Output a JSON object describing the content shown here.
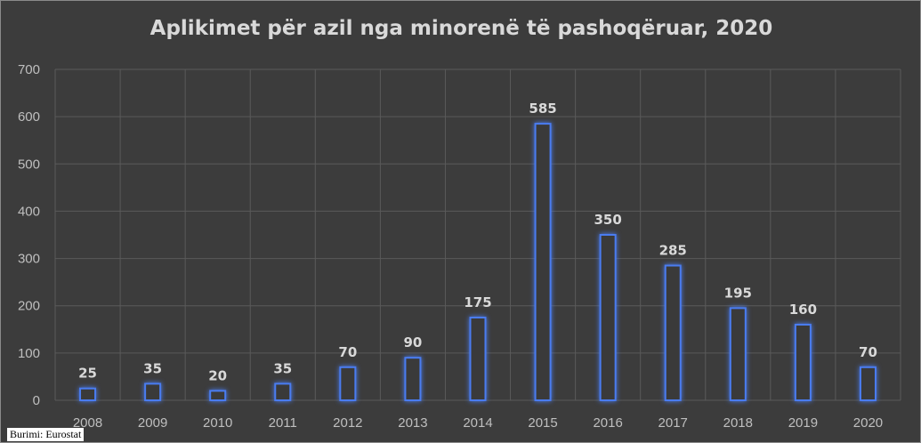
{
  "chart_data": {
    "type": "bar",
    "title": "Aplikimet për azil nga minorenë të pashoqëruar, 2020",
    "categories": [
      "2008",
      "2009",
      "2010",
      "2011",
      "2012",
      "2013",
      "2014",
      "2015",
      "2016",
      "2017",
      "2018",
      "2019",
      "2020"
    ],
    "values": [
      25,
      35,
      20,
      35,
      70,
      90,
      175,
      585,
      350,
      285,
      195,
      160,
      70
    ],
    "yticks": [
      "0",
      "100",
      "200",
      "300",
      "400",
      "500",
      "600",
      "700"
    ],
    "ylim": [
      0,
      700
    ],
    "xlabel": "",
    "ylabel": "",
    "grid": true,
    "bar_color": "#4a7cf0"
  },
  "source": "Burimi: Eurostat"
}
